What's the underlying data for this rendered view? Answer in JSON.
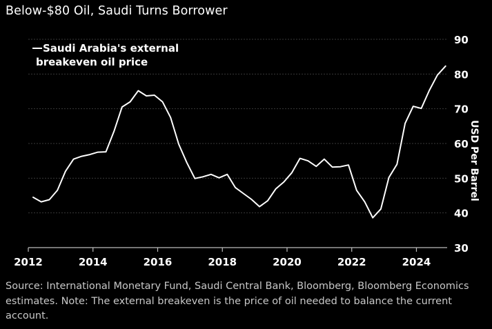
{
  "title": "Below-$80 Oil, Saudi Turns Borrower",
  "source": "Source: International Monetary Fund, Saudi Central Bank, Bloomberg, Bloomberg Economics estimates. Note: The external breakeven is the price of oil needed to balance the current account.",
  "colors": {
    "background": "#000000",
    "line": "#ffffff",
    "grid": "#3a3a3a",
    "text": "#ffffff",
    "source_text": "#c8c8c8"
  },
  "chart_data": {
    "type": "line",
    "title": "Below-$80 Oil, Saudi Turns Borrower",
    "xlabel": "",
    "ylabel": "USD Per Barrel",
    "xlim": [
      2012,
      2024.95
    ],
    "ylim": [
      30,
      90
    ],
    "x_ticks": [
      2012,
      2014,
      2016,
      2018,
      2020,
      2022,
      2024
    ],
    "y_ticks": [
      30,
      40,
      50,
      60,
      70,
      80,
      90
    ],
    "y_axis_side": "right",
    "grid": "horizontal",
    "legend": "top-left",
    "series": [
      {
        "name": "Saudi Arabia's external breakeven oil price",
        "legend_lines": [
          "Saudi Arabia's external",
          "breakeven oil price"
        ],
        "points": [
          [
            2012.15,
            44.5
          ],
          [
            2012.4,
            43.2
          ],
          [
            2012.65,
            43.8
          ],
          [
            2012.9,
            46.5
          ],
          [
            2013.15,
            52.0
          ],
          [
            2013.4,
            55.5
          ],
          [
            2013.65,
            56.3
          ],
          [
            2013.9,
            56.8
          ],
          [
            2014.15,
            57.5
          ],
          [
            2014.4,
            57.6
          ],
          [
            2014.65,
            63.5
          ],
          [
            2014.9,
            70.5
          ],
          [
            2015.15,
            72.0
          ],
          [
            2015.4,
            75.2
          ],
          [
            2015.65,
            73.7
          ],
          [
            2015.9,
            73.9
          ],
          [
            2016.15,
            72.0
          ],
          [
            2016.4,
            67.5
          ],
          [
            2016.65,
            59.8
          ],
          [
            2016.9,
            54.5
          ],
          [
            2017.15,
            49.9
          ],
          [
            2017.4,
            50.4
          ],
          [
            2017.65,
            51.1
          ],
          [
            2017.9,
            50.1
          ],
          [
            2018.15,
            51.1
          ],
          [
            2018.4,
            47.3
          ],
          [
            2018.65,
            45.6
          ],
          [
            2018.9,
            43.9
          ],
          [
            2019.15,
            41.8
          ],
          [
            2019.4,
            43.5
          ],
          [
            2019.65,
            46.9
          ],
          [
            2019.9,
            48.9
          ],
          [
            2020.15,
            51.6
          ],
          [
            2020.4,
            55.7
          ],
          [
            2020.65,
            55.0
          ],
          [
            2020.9,
            53.4
          ],
          [
            2021.15,
            55.5
          ],
          [
            2021.4,
            53.2
          ],
          [
            2021.65,
            53.3
          ],
          [
            2021.9,
            53.8
          ],
          [
            2022.15,
            46.5
          ],
          [
            2022.4,
            43.2
          ],
          [
            2022.65,
            38.6
          ],
          [
            2022.9,
            41.1
          ],
          [
            2023.15,
            50.2
          ],
          [
            2023.4,
            54.0
          ],
          [
            2023.65,
            65.8
          ],
          [
            2023.9,
            70.7
          ],
          [
            2024.15,
            70.1
          ],
          [
            2024.4,
            75.3
          ],
          [
            2024.65,
            79.7
          ],
          [
            2024.9,
            82.3
          ]
        ]
      }
    ]
  }
}
